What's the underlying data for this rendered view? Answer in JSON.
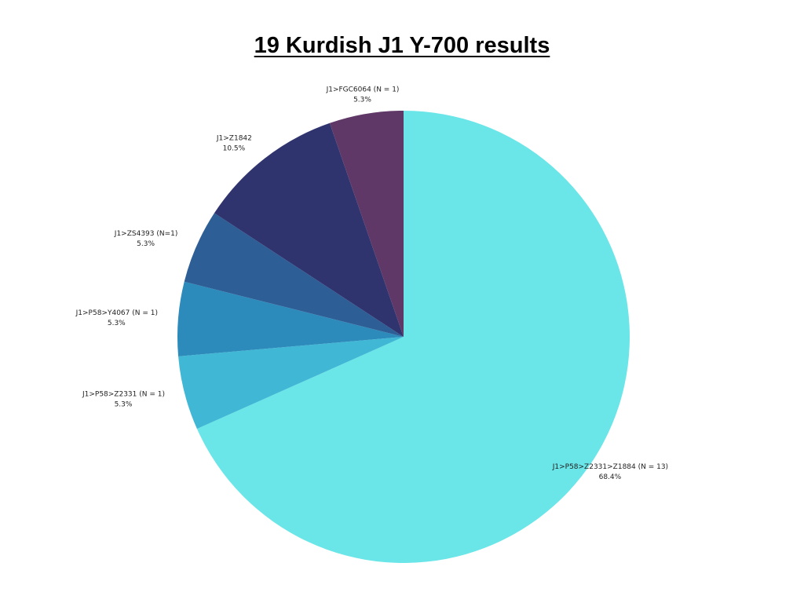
{
  "chart_data": {
    "type": "pie",
    "title": "19 Kurdish J1 Y-700 results",
    "start_angle_deg": 0,
    "direction": "clockwise",
    "slices": [
      {
        "label": "J1>P58>Z2331>Z1884 (N = 13)",
        "value": 68.4,
        "value_label": "68.4%",
        "color": "#6ae5e8"
      },
      {
        "label": "J1>P58>Z2331 (N = 1)",
        "value": 5.3,
        "value_label": "5.3%",
        "color": "#40b7d5"
      },
      {
        "label": "J1>P58>Y4067 (N = 1)",
        "value": 5.3,
        "value_label": "5.3%",
        "color": "#2c8bba"
      },
      {
        "label": "J1>ZS4393 (N=1)",
        "value": 5.3,
        "value_label": "5.3%",
        "color": "#2e5e96"
      },
      {
        "label": "J1>Z1842",
        "value": 10.5,
        "value_label": "10.5%",
        "color": "#30346e"
      },
      {
        "label": "J1>FGC6064 (N = 1)",
        "value": 5.3,
        "value_label": "5.3%",
        "color": "#5f3867"
      }
    ]
  }
}
